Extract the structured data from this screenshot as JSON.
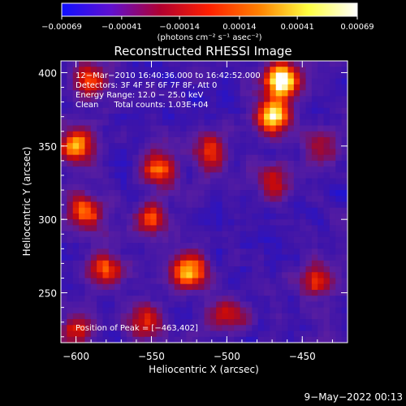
{
  "chart_data": {
    "type": "heatmap",
    "title": "Reconstructed RHESSI Image",
    "xlabel": "Heliocentric X (arcsec)",
    "ylabel": "Heliocentric Y (arcsec)",
    "xlim": [
      -610,
      -420
    ],
    "ylim": [
      216,
      408
    ],
    "x_ticks": [
      -600,
      -550,
      -500,
      -450
    ],
    "x_tick_labels": [
      "−600",
      "−550",
      "−500",
      "−450"
    ],
    "y_ticks": [
      250,
      300,
      350,
      400
    ],
    "y_tick_labels": [
      "250",
      "300",
      "350",
      "400"
    ],
    "colorbar": {
      "range": [
        -0.00069,
        0.00069
      ],
      "ticks": [
        -0.00069,
        -0.00041,
        -0.00014,
        0.00014,
        0.00041,
        0.00069
      ],
      "tick_labels": [
        "−0.00069",
        "−0.00041",
        "−0.00014",
        "0.00014",
        "0.00041",
        "0.00069"
      ],
      "unit": "(photons cm⁻² s⁻¹ asec⁻²)",
      "colors": [
        "#1010ff",
        "#6010d0",
        "#b00030",
        "#ff2000",
        "#ff8000",
        "#ffff40",
        "#ffffff"
      ]
    },
    "info_lines": [
      "12−Mar−2010 16:40:36.000 to 16:42:52.000",
      "Detectors: 3F 4F 5F 6F 7F 8F, Att 0",
      "Energy Range: 12.0 − 25.0 keV",
      "Clean      Total counts: 1.03E+04"
    ],
    "peak_label": "Position of Peak = [−463,402]",
    "peak_position": [
      -463,
      402
    ],
    "bright_regions": [
      {
        "x": -463,
        "y": 395,
        "level": 1.0
      },
      {
        "x": -470,
        "y": 370,
        "level": 0.85
      },
      {
        "x": -600,
        "y": 350,
        "level": 0.75
      },
      {
        "x": -590,
        "y": 395,
        "level": 0.55
      },
      {
        "x": -545,
        "y": 335,
        "level": 0.7
      },
      {
        "x": -550,
        "y": 300,
        "level": 0.5
      },
      {
        "x": -525,
        "y": 265,
        "level": 0.85
      },
      {
        "x": -580,
        "y": 265,
        "level": 0.6
      },
      {
        "x": -595,
        "y": 305,
        "level": 0.7
      },
      {
        "x": -510,
        "y": 345,
        "level": 0.55
      },
      {
        "x": -470,
        "y": 325,
        "level": 0.5
      },
      {
        "x": -440,
        "y": 260,
        "level": 0.55
      },
      {
        "x": -500,
        "y": 235,
        "level": 0.55
      },
      {
        "x": -555,
        "y": 230,
        "level": 0.55
      },
      {
        "x": -435,
        "y": 350,
        "level": 0.45
      },
      {
        "x": -600,
        "y": 225,
        "level": 0.5
      }
    ]
  },
  "footer": {
    "timestamp": "9−May−2022 00:13"
  }
}
